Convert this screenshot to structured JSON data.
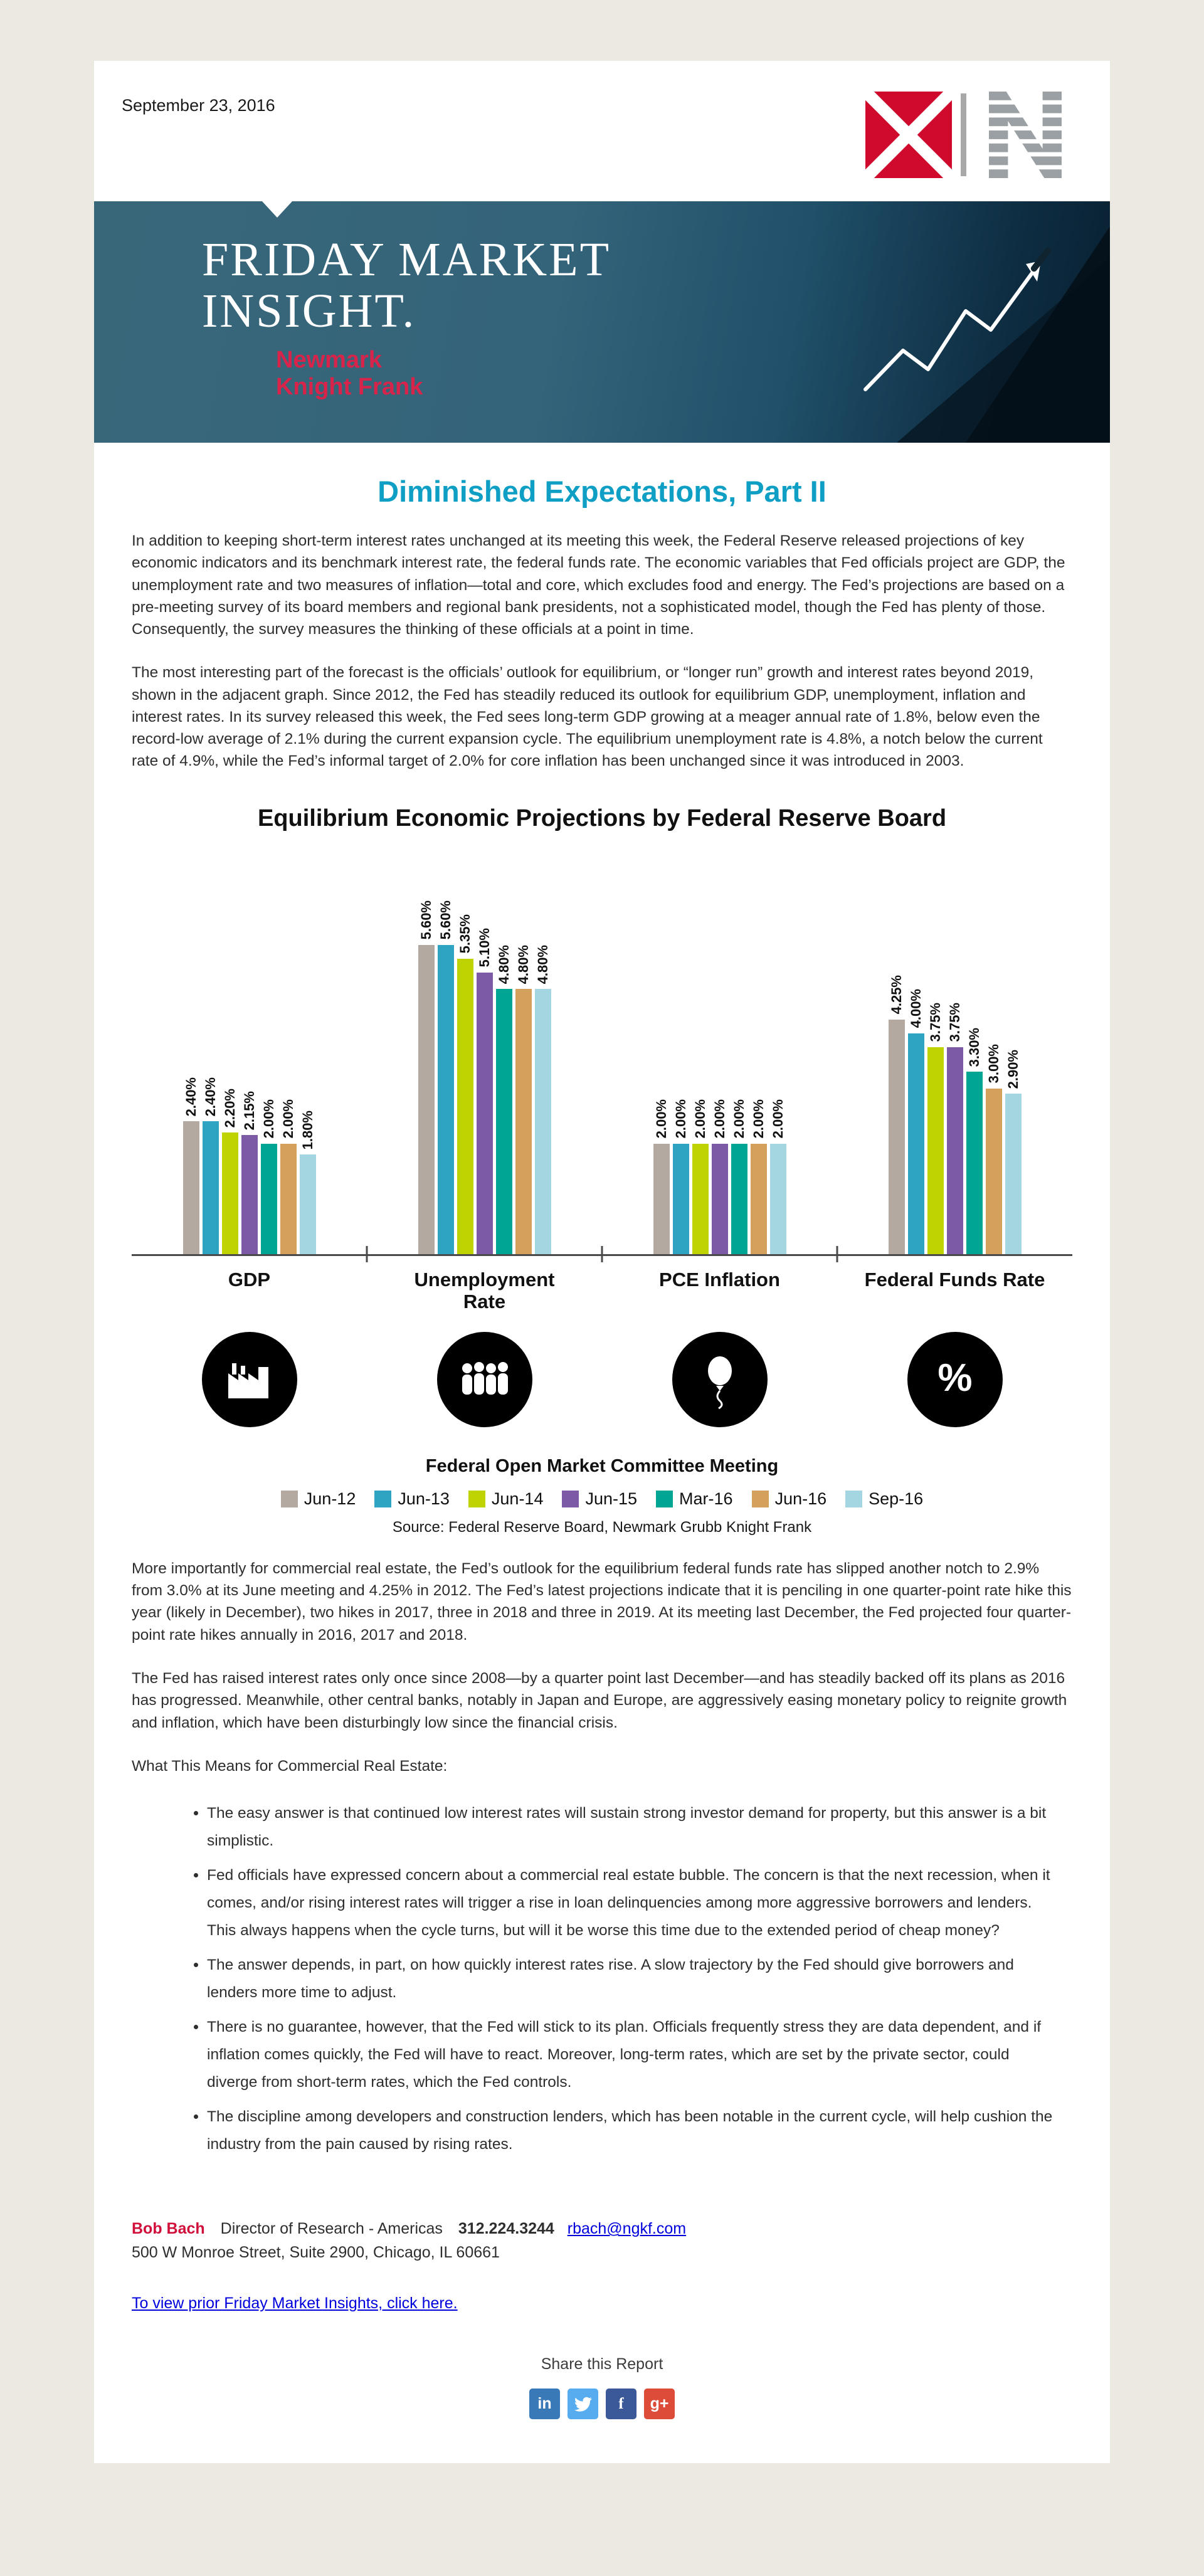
{
  "header": {
    "date": "September 23, 2016"
  },
  "hero": {
    "title_line1": "FRIDAY MARKET",
    "title_line2": "INSIGHT.",
    "brand_line1": "Newmark",
    "brand_line2": "Knight Frank"
  },
  "article": {
    "title": "Diminished Expectations, Part II",
    "p1": "In addition to keeping short-term interest rates unchanged at its meeting this week, the Federal Reserve released projections of key economic indicators and its benchmark interest rate, the federal funds rate. The economic variables that Fed officials project are GDP, the unemployment rate and two measures of inflation—total and core, which excludes food and energy. The Fed’s projections are based on a pre-meeting survey of its board members and regional bank presidents, not a sophisticated model, though the Fed has plenty of those. Consequently, the survey measures the thinking of these officials at a point in time.",
    "p2": "The most interesting part of the forecast is the officials’ outlook for equilibrium, or “longer run” growth and interest rates beyond 2019, shown in the adjacent graph. Since 2012, the Fed has steadily reduced its outlook for equilibrium GDP, unemployment, inflation and interest rates. In its survey released this week, the Fed sees long-term GDP growing at a meager annual rate of 1.8%, below even the record-low average of 2.1% during the current expansion cycle. The equilibrium unemployment rate is 4.8%, a notch below the current rate of 4.9%, while the Fed’s informal target of 2.0% for core inflation has been unchanged since it was introduced in 2003.",
    "p3": "More importantly for commercial real estate, the Fed’s outlook for the equilibrium federal funds rate has slipped another notch to 2.9% from 3.0% at its June meeting and 4.25% in 2012. The Fed’s latest projections indicate that it is penciling in one quarter-point rate hike this year (likely in December), two hikes in 2017, three in 2018 and three in 2019. At its meeting last December, the Fed projected four quarter-point rate hikes annually in 2016, 2017 and 2018.",
    "p4": "The Fed has raised interest rates only once since 2008—by a quarter point last December—and has steadily backed off its plans as 2016 has progressed. Meanwhile, other central banks, notably in Japan and Europe, are aggressively easing monetary policy to reignite growth and inflation, which have been disturbingly low since the financial crisis.",
    "p5": "What This Means for Commercial Real Estate:",
    "bullets": [
      "The easy answer is that continued low interest rates will sustain strong investor demand for property, but this answer is a bit simplistic.",
      "Fed officials have expressed concern about a commercial real estate bubble. The concern is that the next recession, when it comes, and/or rising interest rates will trigger a rise in loan delinquencies among more aggressive borrowers and lenders. This always happens when the cycle turns, but will it be worse this time due to the extended period of cheap money?",
      "The answer depends, in part, on how quickly interest rates rise. A slow trajectory by the Fed should give borrowers and lenders more time to adjust.",
      "There is no guarantee, however, that the Fed will stick to its plan. Officials frequently stress they are data dependent, and if inflation comes quickly, the Fed will have to react. Moreover, long-term rates, which are set by the private sector, could diverge from short-term rates, which the Fed controls.",
      "The discipline among developers and construction lenders, which has been notable in the current cycle, will help cushion the industry from the pain caused by rising rates."
    ]
  },
  "chart_data": {
    "type": "bar",
    "title": "Equilibrium Economic Projections by Federal Reserve Board",
    "legend_title": "Federal Open Market Committee Meeting",
    "source": "Source: Federal Reserve Board, Newmark Grubb Knight Frank",
    "categories": [
      "GDP",
      "Unemployment Rate",
      "PCE Inflation",
      "Federal Funds Rate"
    ],
    "category_icons": [
      "factory-icon",
      "people-icon",
      "balloon-icon",
      "percent-icon"
    ],
    "unit": "%",
    "ylim": [
      0,
      6
    ],
    "series": [
      {
        "name": "Jun-12",
        "color": "#b3a9a0",
        "values": [
          2.4,
          5.6,
          2.0,
          4.25
        ]
      },
      {
        "name": "Jun-13",
        "color": "#2fa3c2",
        "values": [
          2.4,
          5.6,
          2.0,
          4.0
        ]
      },
      {
        "name": "Jun-14",
        "color": "#bfd202",
        "values": [
          2.2,
          5.35,
          2.0,
          3.75
        ]
      },
      {
        "name": "Jun-15",
        "color": "#7d5aa5",
        "values": [
          2.15,
          5.1,
          2.0,
          3.75
        ]
      },
      {
        "name": "Mar-16",
        "color": "#00a693",
        "values": [
          2.0,
          4.8,
          2.0,
          3.3
        ]
      },
      {
        "name": "Jun-16",
        "color": "#d3a15c",
        "values": [
          2.0,
          4.8,
          2.0,
          3.0
        ]
      },
      {
        "name": "Sep-16",
        "color": "#a3d6e0",
        "values": [
          1.8,
          4.8,
          2.0,
          2.9
        ]
      }
    ]
  },
  "footer": {
    "contact_name": "Bob Bach",
    "contact_title": "Director of Research - Americas",
    "contact_phone": "312.224.3244",
    "contact_email": "rbach@ngkf.com",
    "contact_address": "500 W Monroe Street, Suite 2900, Chicago, IL 60661",
    "prior_link": "To view prior Friday Market Insights, click here.",
    "share_label": "Share this Report",
    "social": [
      {
        "name": "linkedin",
        "glyph": "in",
        "color": "#3a79b8"
      },
      {
        "name": "twitter",
        "glyph": "",
        "color": "#56acee"
      },
      {
        "name": "facebook",
        "glyph": "f",
        "color": "#3b5998"
      },
      {
        "name": "google-plus",
        "glyph": "g+",
        "color": "#dd4b39"
      }
    ]
  },
  "colors": {
    "accent_teal": "#0f9fc5",
    "brand_red": "#d8234a",
    "contact_red": "#d0103a",
    "link_blue": "#0000dd",
    "page_background": "#ece9e2"
  }
}
